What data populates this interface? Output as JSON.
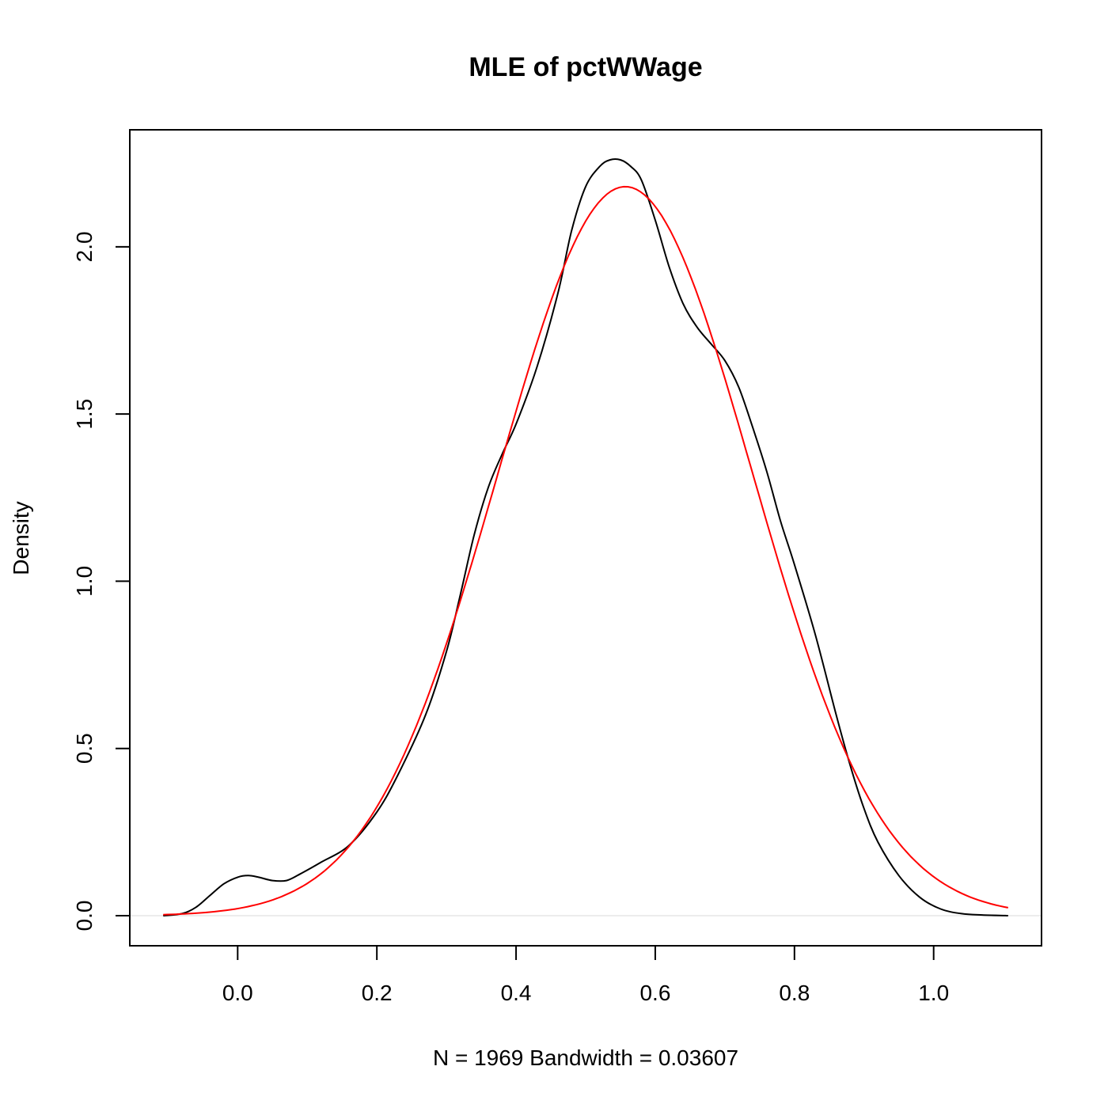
{
  "chart_data": {
    "type": "line",
    "title": "MLE of pctWWage",
    "xlabel": "N = 1969   Bandwidth = 0.03607",
    "ylabel": "Density",
    "xlim": [
      -0.155,
      1.155
    ],
    "ylim": [
      -0.09,
      2.35
    ],
    "x_ticks": [
      {
        "value": 0.0,
        "label": "0.0"
      },
      {
        "value": 0.2,
        "label": "0.2"
      },
      {
        "value": 0.4,
        "label": "0.4"
      },
      {
        "value": 0.6,
        "label": "0.6"
      },
      {
        "value": 0.8,
        "label": "0.8"
      },
      {
        "value": 1.0,
        "label": "1.0"
      }
    ],
    "y_ticks": [
      {
        "value": 0.0,
        "label": "0.0"
      },
      {
        "value": 0.5,
        "label": "0.5"
      },
      {
        "value": 1.0,
        "label": "1.0"
      },
      {
        "value": 1.5,
        "label": "1.5"
      },
      {
        "value": 2.0,
        "label": "2.0"
      }
    ],
    "grid": false,
    "zero_line": true,
    "series": [
      {
        "color": "#000000",
        "x": [
          -0.107,
          -0.08,
          -0.06,
          -0.04,
          -0.02,
          0.0,
          0.015,
          0.03,
          0.05,
          0.07,
          0.09,
          0.12,
          0.16,
          0.2,
          0.23,
          0.27,
          0.3,
          0.32,
          0.34,
          0.36,
          0.38,
          0.4,
          0.43,
          0.46,
          0.48,
          0.5,
          0.52,
          0.535,
          0.55,
          0.565,
          0.58,
          0.6,
          0.62,
          0.64,
          0.66,
          0.68,
          0.7,
          0.72,
          0.74,
          0.76,
          0.78,
          0.8,
          0.83,
          0.86,
          0.88,
          0.9,
          0.92,
          0.95,
          0.98,
          1.01,
          1.04,
          1.07,
          1.107
        ],
        "y": [
          0.0,
          0.006,
          0.025,
          0.06,
          0.095,
          0.115,
          0.12,
          0.115,
          0.105,
          0.105,
          0.125,
          0.16,
          0.21,
          0.31,
          0.42,
          0.6,
          0.79,
          0.96,
          1.14,
          1.28,
          1.38,
          1.47,
          1.64,
          1.86,
          2.05,
          2.18,
          2.24,
          2.26,
          2.26,
          2.24,
          2.2,
          2.08,
          1.94,
          1.83,
          1.76,
          1.71,
          1.66,
          1.58,
          1.46,
          1.33,
          1.18,
          1.05,
          0.84,
          0.6,
          0.45,
          0.32,
          0.22,
          0.12,
          0.055,
          0.02,
          0.006,
          0.002,
          0.0
        ]
      },
      {
        "color": "#ff0000",
        "function": "normal",
        "mean": 0.557,
        "sd": 0.183,
        "x_range": [
          -0.107,
          1.107
        ]
      }
    ]
  }
}
